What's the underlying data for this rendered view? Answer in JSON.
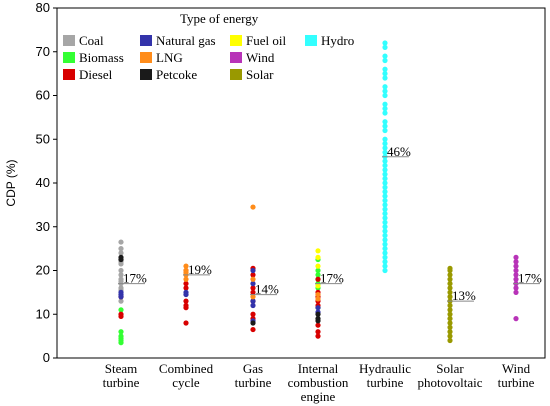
{
  "chart_data": {
    "type": "scatter",
    "title": "",
    "xlabel": "",
    "ylabel": "CDP (%)",
    "ylim": [
      0,
      80
    ],
    "yticks": [
      0,
      10,
      20,
      30,
      40,
      50,
      60,
      70,
      80
    ],
    "grid": false,
    "legend": {
      "title": "Type of energy",
      "placement": "top-left",
      "entries": [
        {
          "name": "Coal",
          "color": "#a6a6a6"
        },
        {
          "name": "Biomass",
          "color": "#33ff33"
        },
        {
          "name": "Diesel",
          "color": "#d80000"
        },
        {
          "name": "Natural gas",
          "color": "#3333aa"
        },
        {
          "name": "LNG",
          "color": "#ff8c1a"
        },
        {
          "name": "Petcoke",
          "color": "#1a1a1a"
        },
        {
          "name": "Fuel oil",
          "color": "#ffff00"
        },
        {
          "name": "Wind",
          "color": "#b833b8"
        },
        {
          "name": "Solar",
          "color": "#999900"
        },
        {
          "name": "Hydro",
          "color": "#33ffff"
        }
      ]
    },
    "categories": [
      {
        "label": [
          "Steam",
          "turbine"
        ],
        "mean_label": "17%",
        "mean": 17
      },
      {
        "label": [
          "Combined",
          "cycle"
        ],
        "mean_label": "19%",
        "mean": 19
      },
      {
        "label": [
          "Gas",
          "turbine"
        ],
        "mean_label": "14%",
        "mean": 14.5
      },
      {
        "label": [
          "Internal",
          "combustion",
          "engine"
        ],
        "mean_label": "17%",
        "mean": 17
      },
      {
        "label": [
          "Hydraulic",
          "turbine"
        ],
        "mean_label": "46%",
        "mean": 46
      },
      {
        "label": [
          "Solar",
          "photovoltaic"
        ],
        "mean_label": "13%",
        "mean": 13
      },
      {
        "label": [
          "Wind",
          "turbine"
        ],
        "mean_label": "17%",
        "mean": 17
      }
    ],
    "series": [
      {
        "name": "Coal",
        "points": [
          [
            0,
            26.5
          ],
          [
            0,
            25
          ],
          [
            0,
            24
          ],
          [
            0,
            22
          ],
          [
            0,
            21.5
          ],
          [
            0,
            20
          ],
          [
            0,
            19
          ],
          [
            0,
            18
          ],
          [
            0,
            17.5
          ],
          [
            0,
            17
          ],
          [
            0,
            16
          ],
          [
            0,
            15.5
          ],
          [
            0,
            13
          ]
        ]
      },
      {
        "name": "Biomass",
        "points": [
          [
            0,
            11
          ],
          [
            0,
            6
          ],
          [
            0,
            5
          ],
          [
            0,
            4.5
          ],
          [
            0,
            4
          ],
          [
            0,
            3.5
          ],
          [
            3,
            22.5
          ],
          [
            3,
            20
          ],
          [
            3,
            19
          ],
          [
            3,
            18
          ],
          [
            3,
            17
          ],
          [
            3,
            16
          ],
          [
            3,
            11.5
          ]
        ]
      },
      {
        "name": "Diesel",
        "points": [
          [
            0,
            14
          ],
          [
            0,
            10
          ],
          [
            0,
            9.5
          ],
          [
            1,
            20
          ],
          [
            1,
            17
          ],
          [
            1,
            16
          ],
          [
            1,
            13
          ],
          [
            1,
            12
          ],
          [
            1,
            11.5
          ],
          [
            1,
            8
          ],
          [
            2,
            20.5
          ],
          [
            2,
            19
          ],
          [
            2,
            16
          ],
          [
            2,
            15
          ],
          [
            2,
            13
          ],
          [
            2,
            10
          ],
          [
            2,
            9
          ],
          [
            2,
            6.5
          ],
          [
            3,
            18
          ],
          [
            3,
            15
          ],
          [
            3,
            14
          ],
          [
            3,
            13
          ],
          [
            3,
            12
          ],
          [
            3,
            7.5
          ],
          [
            3,
            6
          ],
          [
            3,
            5
          ]
        ]
      },
      {
        "name": "Natural gas",
        "points": [
          [
            0,
            15
          ],
          [
            0,
            14.5
          ],
          [
            0,
            14
          ],
          [
            1,
            15
          ],
          [
            1,
            14.5
          ],
          [
            2,
            20
          ],
          [
            2,
            17
          ],
          [
            2,
            13
          ],
          [
            2,
            12
          ],
          [
            2,
            8.5
          ],
          [
            3,
            11.5
          ],
          [
            3,
            10.5
          ]
        ]
      },
      {
        "name": "LNG",
        "points": [
          [
            1,
            21
          ],
          [
            1,
            20
          ],
          [
            1,
            19.5
          ],
          [
            1,
            19
          ],
          [
            1,
            18
          ],
          [
            2,
            34.5
          ],
          [
            2,
            18
          ],
          [
            2,
            14
          ],
          [
            3,
            14.5
          ],
          [
            3,
            13.5
          ]
        ]
      },
      {
        "name": "Petcoke",
        "points": [
          [
            0,
            23
          ],
          [
            0,
            22.5
          ],
          [
            2,
            8
          ],
          [
            3,
            10
          ],
          [
            3,
            9
          ],
          [
            3,
            8.5
          ]
        ]
      },
      {
        "name": "Fuel oil",
        "points": [
          [
            3,
            24.5
          ],
          [
            3,
            23
          ],
          [
            3,
            21
          ],
          [
            3,
            16.5
          ]
        ]
      },
      {
        "name": "Hydro",
        "points": [
          [
            4,
            72
          ],
          [
            4,
            71
          ],
          [
            4,
            69
          ],
          [
            4,
            68
          ],
          [
            4,
            66
          ],
          [
            4,
            65
          ],
          [
            4,
            64
          ],
          [
            4,
            62
          ],
          [
            4,
            61
          ],
          [
            4,
            60
          ],
          [
            4,
            58
          ],
          [
            4,
            57
          ],
          [
            4,
            56
          ],
          [
            4,
            54
          ],
          [
            4,
            53
          ],
          [
            4,
            52
          ],
          [
            4,
            50
          ],
          [
            4,
            49
          ],
          [
            4,
            48
          ],
          [
            4,
            47
          ],
          [
            4,
            46
          ],
          [
            4,
            45
          ],
          [
            4,
            44
          ],
          [
            4,
            43
          ],
          [
            4,
            42
          ],
          [
            4,
            41
          ],
          [
            4,
            40
          ],
          [
            4,
            39
          ],
          [
            4,
            38
          ],
          [
            4,
            37
          ],
          [
            4,
            36
          ],
          [
            4,
            35
          ],
          [
            4,
            34
          ],
          [
            4,
            33
          ],
          [
            4,
            32
          ],
          [
            4,
            31
          ],
          [
            4,
            30
          ],
          [
            4,
            29
          ],
          [
            4,
            28
          ],
          [
            4,
            27
          ],
          [
            4,
            26
          ],
          [
            4,
            25
          ],
          [
            4,
            24
          ],
          [
            4,
            23
          ],
          [
            4,
            22
          ],
          [
            4,
            21
          ],
          [
            4,
            20
          ]
        ]
      },
      {
        "name": "Solar",
        "points": [
          [
            5,
            20.5
          ],
          [
            5,
            20
          ],
          [
            5,
            19
          ],
          [
            5,
            18
          ],
          [
            5,
            17
          ],
          [
            5,
            16
          ],
          [
            5,
            15
          ],
          [
            5,
            14
          ],
          [
            5,
            13
          ],
          [
            5,
            12
          ],
          [
            5,
            11
          ],
          [
            5,
            10
          ],
          [
            5,
            9
          ],
          [
            5,
            8
          ],
          [
            5,
            7
          ],
          [
            5,
            6
          ],
          [
            5,
            5
          ],
          [
            5,
            4
          ]
        ]
      },
      {
        "name": "Wind",
        "points": [
          [
            6,
            23
          ],
          [
            6,
            22
          ],
          [
            6,
            21
          ],
          [
            6,
            20
          ],
          [
            6,
            19
          ],
          [
            6,
            18
          ],
          [
            6,
            17
          ],
          [
            6,
            16
          ],
          [
            6,
            15
          ],
          [
            6,
            9
          ]
        ]
      }
    ]
  }
}
